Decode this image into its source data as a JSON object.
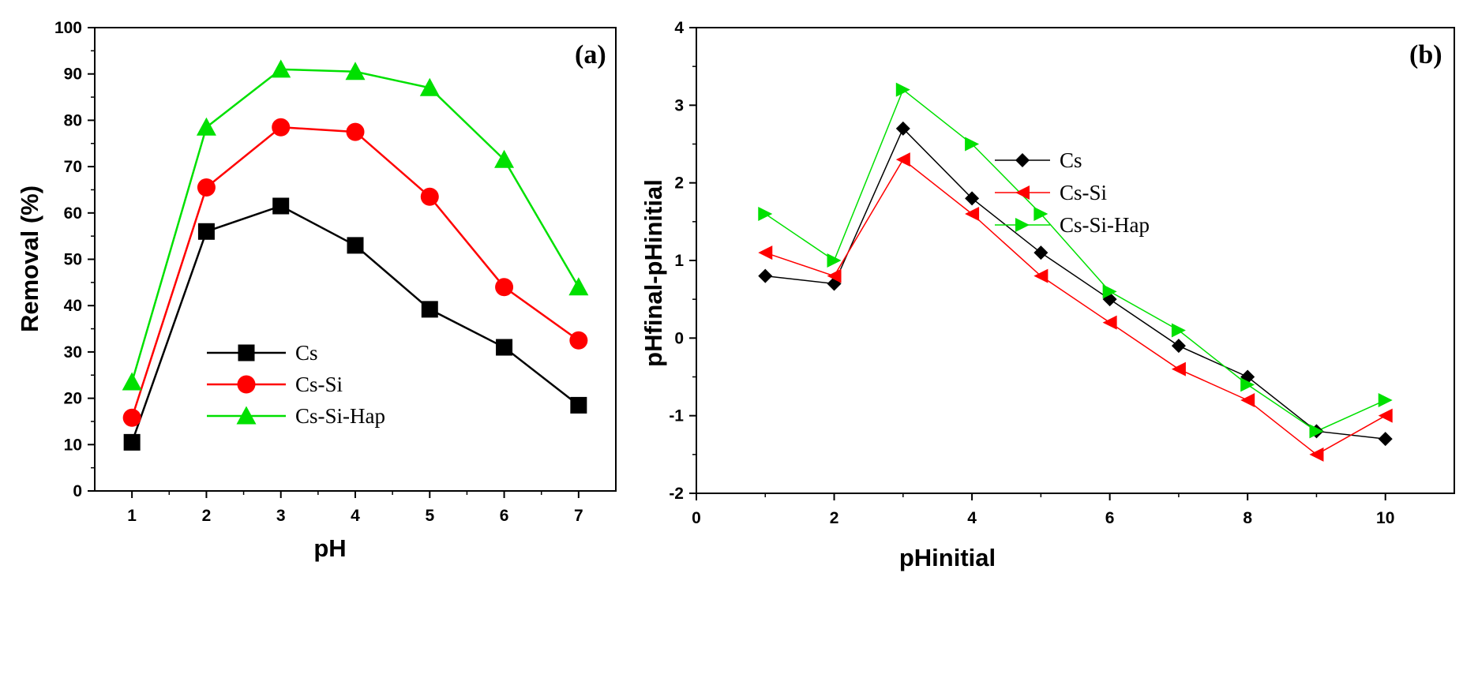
{
  "chart_data": [
    {
      "type": "line",
      "panel_label": "(a)",
      "xlabel": "pH",
      "ylabel": "Removal (%)",
      "xlim": [
        0.5,
        7.5
      ],
      "ylim": [
        0,
        100
      ],
      "xticks": [
        1,
        2,
        3,
        4,
        5,
        6,
        7
      ],
      "yticks": [
        0,
        10,
        20,
        30,
        40,
        50,
        60,
        70,
        80,
        90,
        100
      ],
      "grid": false,
      "legend_position": "bottom-left",
      "series": [
        {
          "name": "Cs",
          "color": "#000000",
          "marker": "square",
          "x": [
            1,
            2,
            3,
            4,
            5,
            6,
            7
          ],
          "y": [
            10.5,
            56,
            61.5,
            53,
            39.2,
            31,
            18.5
          ]
        },
        {
          "name": "Cs-Si",
          "color": "#ff0000",
          "marker": "circle",
          "x": [
            1,
            2,
            3,
            4,
            5,
            6,
            7
          ],
          "y": [
            15.8,
            65.5,
            78.5,
            77.5,
            63.5,
            44,
            32.5
          ]
        },
        {
          "name": "Cs-Si-Hap",
          "color": "#00e000",
          "marker": "triangle-up",
          "x": [
            1,
            2,
            3,
            4,
            5,
            6,
            7
          ],
          "y": [
            23.5,
            78.5,
            91,
            90.5,
            87,
            71.5,
            44
          ]
        }
      ]
    },
    {
      "type": "line",
      "panel_label": "(b)",
      "xlabel": "pHinitial",
      "ylabel": "pHfinal-pHinitial",
      "xlim": [
        0,
        11
      ],
      "ylim": [
        -2,
        4
      ],
      "xticks": [
        0,
        2,
        4,
        6,
        8,
        10
      ],
      "yticks": [
        -2,
        -1,
        0,
        1,
        2,
        3,
        4
      ],
      "grid": false,
      "legend_position": "top-right",
      "series": [
        {
          "name": "Cs",
          "color": "#000000",
          "marker": "diamond",
          "x": [
            1,
            2,
            3,
            4,
            5,
            6,
            7,
            8,
            9,
            10
          ],
          "y": [
            0.8,
            0.7,
            2.7,
            1.8,
            1.1,
            0.5,
            -0.1,
            -0.5,
            -1.2,
            -1.3
          ]
        },
        {
          "name": "Cs-Si",
          "color": "#ff0000",
          "marker": "triangle-left",
          "x": [
            1,
            2,
            3,
            4,
            5,
            6,
            7,
            8,
            9,
            10
          ],
          "y": [
            1.1,
            0.8,
            2.3,
            1.6,
            0.8,
            0.2,
            -0.4,
            -0.8,
            -1.5,
            -1.0
          ]
        },
        {
          "name": "Cs-Si-Hap",
          "color": "#00e000",
          "marker": "triangle-right",
          "x": [
            1,
            2,
            3,
            4,
            5,
            6,
            7,
            8,
            9,
            10
          ],
          "y": [
            1.6,
            1.0,
            3.2,
            2.5,
            1.6,
            0.6,
            0.1,
            -0.6,
            -1.2,
            -0.8
          ]
        }
      ]
    }
  ]
}
